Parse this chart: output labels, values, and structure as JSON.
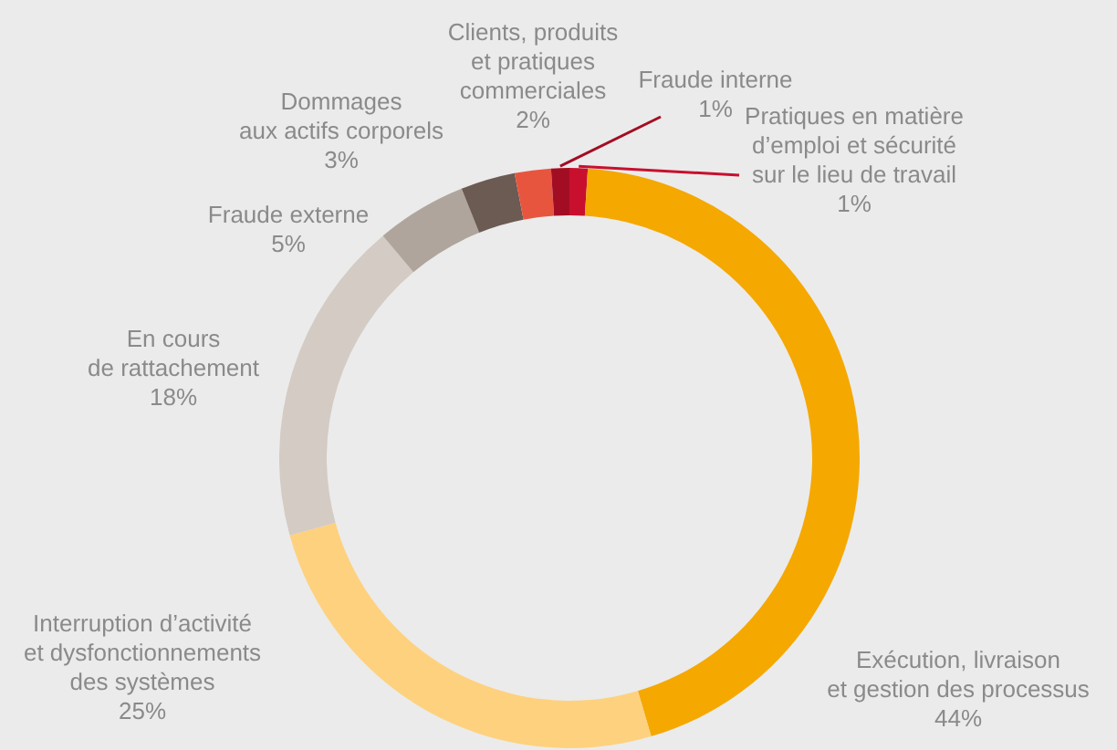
{
  "chart_data": {
    "type": "donut",
    "categories": [
      "Pratiques en matière d’emploi et sécurité sur le lieu de travail",
      "Exécution, livraison et gestion des processus",
      "Interruption d’activité et dysfonctionnements des systèmes",
      "En cours de rattachement",
      "Fraude externe",
      "Dommages aux actifs corporels",
      "Clients, produits et pratiques commerciales",
      "Fraude interne"
    ],
    "values": [
      1,
      44,
      25,
      18,
      5,
      3,
      2,
      1
    ],
    "value_labels": [
      "1%",
      "44%",
      "25%",
      "18%",
      "5%",
      "3%",
      "2%",
      "1%"
    ],
    "colors": [
      "#c8102e",
      "#f5a800",
      "#fed17e",
      "#d3cbc4",
      "#b0a59c",
      "#6b5b53",
      "#e8553f",
      "#a30d23"
    ]
  }
}
